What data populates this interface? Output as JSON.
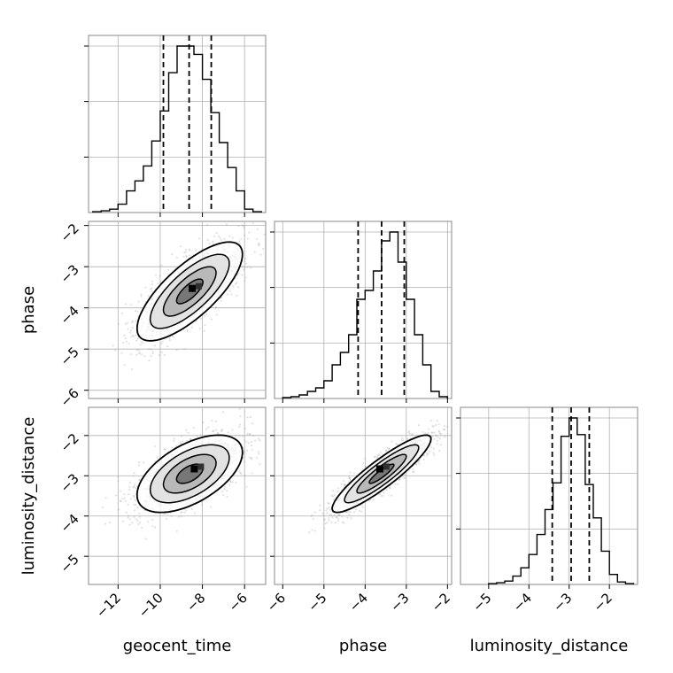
{
  "chart_data": {
    "type": "corner",
    "parameters": [
      "geocent_time",
      "phase",
      "luminosity_distance"
    ],
    "axis_labels": {
      "x": [
        "geocent_time",
        "phase",
        "luminosity_distance"
      ],
      "y": [
        "phase",
        "luminosity_distance"
      ]
    },
    "ranges": {
      "geocent_time": [
        -13.4,
        -5.0
      ],
      "phase": [
        -6.2,
        -1.9
      ],
      "luminosity_distance": [
        -5.7,
        -1.3
      ]
    },
    "ticks": {
      "geocent_time": [
        -12,
        -10,
        -8,
        -6
      ],
      "phase": [
        -6,
        -5,
        -4,
        -3,
        -2
      ],
      "luminosity_distance": [
        -5,
        -4,
        -3,
        -2
      ]
    },
    "tick_labels": {
      "geocent_time": [
        "−12",
        "−10",
        "−8",
        "−6"
      ],
      "phase": [
        "−6",
        "−5",
        "−4",
        "−3",
        "−2"
      ],
      "luminosity_distance": [
        "−5",
        "−4",
        "−3",
        "−2"
      ]
    },
    "quantiles": {
      "geocent_time": [
        -9.85,
        -8.63,
        -7.58
      ],
      "phase": [
        -4.17,
        -3.6,
        -3.05
      ],
      "luminosity_distance": [
        -3.42,
        -2.95,
        -2.5
      ]
    },
    "histograms": {
      "geocent_time": {
        "edges": [
          -13.2,
          -12.8,
          -12.4,
          -12.0,
          -11.6,
          -11.2,
          -10.8,
          -10.4,
          -10.0,
          -9.6,
          -9.2,
          -8.8,
          -8.4,
          -8.0,
          -7.6,
          -7.2,
          -6.8,
          -6.4,
          -6.0,
          -5.6,
          -5.2
        ],
        "counts": [
          0.5,
          1,
          2,
          5,
          13,
          19,
          28,
          43,
          61,
          84,
          100,
          100,
          95,
          80,
          60,
          42,
          27,
          13,
          2,
          0.5
        ]
      },
      "phase": {
        "edges": [
          -6.0,
          -5.8,
          -5.6,
          -5.4,
          -5.2,
          -5.0,
          -4.8,
          -4.6,
          -4.4,
          -4.2,
          -4.0,
          -3.8,
          -3.6,
          -3.4,
          -3.2,
          -3.0,
          -2.8,
          -2.6,
          -2.4,
          -2.2,
          -2.0
        ],
        "counts": [
          0.5,
          1,
          2,
          4,
          6,
          10,
          19,
          26,
          36,
          56,
          61,
          72,
          89,
          94,
          77,
          56,
          36,
          19,
          4,
          1
        ]
      },
      "luminosity_distance": {
        "edges": [
          -5.0,
          -4.8,
          -4.6,
          -4.4,
          -4.2,
          -4.0,
          -3.8,
          -3.6,
          -3.4,
          -3.2,
          -3.0,
          -2.8,
          -2.6,
          -2.4,
          -2.2,
          -2.0,
          -1.8,
          -1.6,
          -1.4
        ],
        "counts": [
          0.5,
          1,
          2,
          5,
          10,
          18,
          30,
          45,
          61,
          89,
          100,
          90,
          60,
          40,
          20,
          6,
          1.5,
          0.5
        ]
      }
    },
    "joint": [
      {
        "x": "geocent_time",
        "y": "phase",
        "mean": [
          -8.6,
          -3.6
        ],
        "sd": [
          1.25,
          0.6
        ],
        "corr": 0.75,
        "peak": [
          -8.4,
          -3.55
        ]
      },
      {
        "x": "geocent_time",
        "y": "luminosity_distance",
        "mean": [
          -8.6,
          -2.95
        ],
        "sd": [
          1.25,
          0.48
        ],
        "corr": 0.55,
        "peak": [
          -8.3,
          -2.85
        ]
      },
      {
        "x": "phase",
        "y": "luminosity_distance",
        "mean": [
          -3.6,
          -2.95
        ],
        "sd": [
          0.6,
          0.48
        ],
        "corr": 0.9,
        "peak": [
          -3.6,
          -2.85
        ]
      }
    ],
    "contour_levels_sigma": [
      0.5,
      1.0,
      1.5,
      2.0
    ],
    "grid": true,
    "title": ""
  }
}
